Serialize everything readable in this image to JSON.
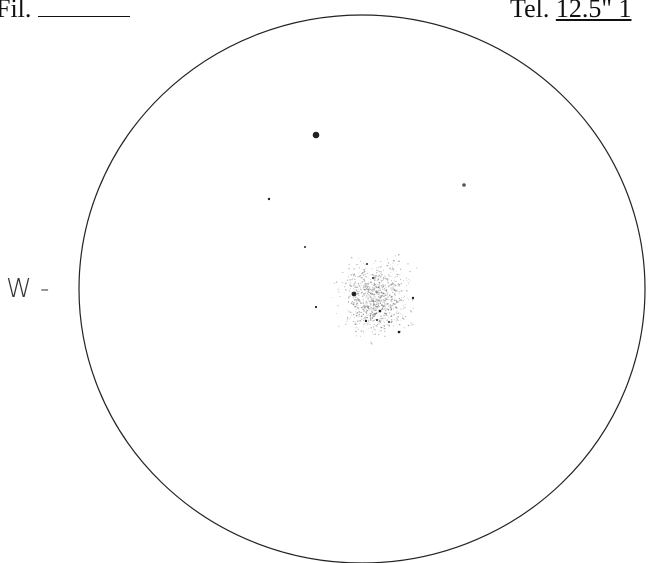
{
  "header": {
    "filter_label": "Fil.",
    "telescope_label": "Tel.",
    "telescope_value": "12.5\" 1"
  },
  "direction_label": "W -"
}
